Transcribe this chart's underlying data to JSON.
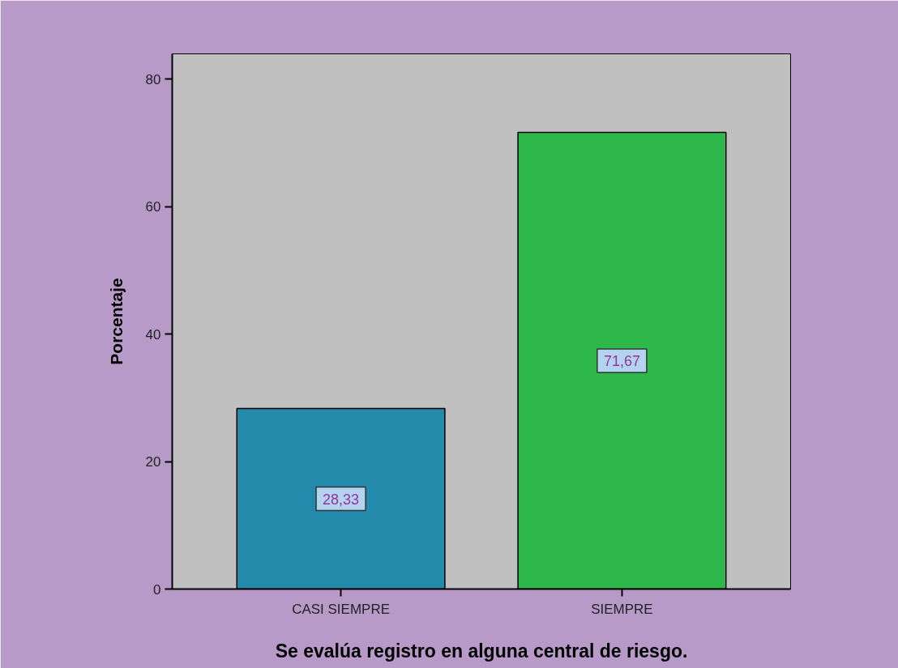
{
  "chart_data": {
    "type": "bar",
    "xlabel": "Se evalúa registro en alguna central de riesgo.",
    "ylabel": "Porcentaje",
    "categories": [
      "CASI SIEMPRE",
      "SIEMPRE"
    ],
    "values": [
      28.33,
      71.67
    ],
    "colors": [
      "#248aac",
      "#2eb84a"
    ],
    "value_labels": [
      "28,33",
      "71,67"
    ],
    "ylim": [
      0,
      84
    ],
    "yticks": [
      0,
      20,
      40,
      60,
      80
    ],
    "grid": false
  }
}
